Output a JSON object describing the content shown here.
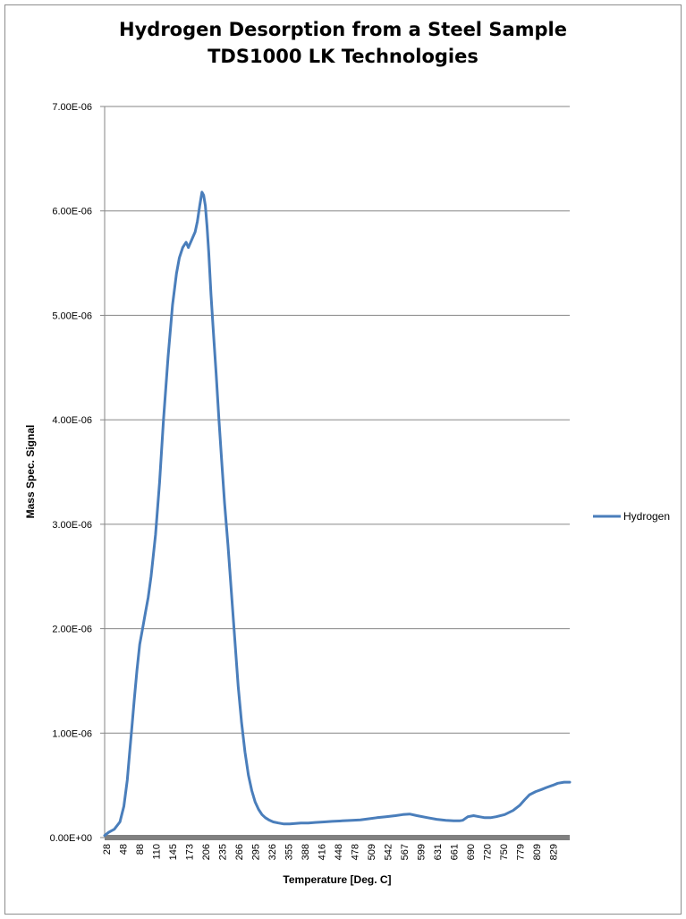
{
  "chart_data": {
    "type": "line",
    "title": "Hydrogen Desorption from a Steel Sample",
    "subtitle": "TDS1000 LK Technologies",
    "xlabel": "Temperature [Deg. C]",
    "ylabel": "Mass Spec. Signal",
    "ylim": [
      0,
      7e-06
    ],
    "xlim": [
      28,
      850
    ],
    "y_ticks": [
      "0.00E+00",
      "1.00E-06",
      "2.00E-06",
      "3.00E-06",
      "4.00E-06",
      "5.00E-06",
      "6.00E-06",
      "7.00E-06"
    ],
    "x_ticks": [
      "28",
      "48",
      "88",
      "110",
      "145",
      "173",
      "206",
      "235",
      "266",
      "295",
      "326",
      "355",
      "388",
      "416",
      "448",
      "478",
      "509",
      "542",
      "567",
      "599",
      "631",
      "661",
      "690",
      "720",
      "750",
      "779",
      "809",
      "829"
    ],
    "grid": true,
    "legend_position": "right",
    "series": [
      {
        "name": "Hydrogen",
        "color": "#4a7ebb",
        "x": [
          28,
          35,
          45,
          55,
          62,
          68,
          72,
          76,
          80,
          85,
          90,
          95,
          100,
          105,
          110,
          118,
          125,
          132,
          140,
          148,
          155,
          160,
          166,
          172,
          176,
          180,
          184,
          188,
          192,
          196,
          200,
          203,
          206,
          209,
          212,
          216,
          220,
          225,
          230,
          235,
          240,
          246,
          252,
          258,
          264,
          270,
          276,
          282,
          288,
          294,
          300,
          306,
          312,
          318,
          326,
          335,
          345,
          355,
          365,
          375,
          388,
          400,
          416,
          430,
          448,
          465,
          480,
          495,
          509,
          525,
          542,
          555,
          567,
          580,
          599,
          615,
          631,
          645,
          655,
          661,
          670,
          680,
          690,
          700,
          710,
          720,
          735,
          750,
          762,
          770,
          779,
          790,
          800,
          809,
          820,
          829,
          840,
          850
        ],
        "y": [
          2e-08,
          5e-08,
          8e-08,
          1.5e-07,
          3e-07,
          5.5e-07,
          8e-07,
          1.05e-06,
          1.3e-06,
          1.6e-06,
          1.85e-06,
          2e-06,
          2.15e-06,
          2.3e-06,
          2.5e-06,
          2.9e-06,
          3.4e-06,
          4e-06,
          4.6e-06,
          5.1e-06,
          5.4e-06,
          5.55e-06,
          5.65e-06,
          5.7e-06,
          5.65e-06,
          5.7e-06,
          5.75e-06,
          5.8e-06,
          5.9e-06,
          6.05e-06,
          6.18e-06,
          6.15e-06,
          6.05e-06,
          5.85e-06,
          5.6e-06,
          5.2e-06,
          4.85e-06,
          4.45e-06,
          4e-06,
          3.6e-06,
          3.2e-06,
          2.8e-06,
          2.35e-06,
          1.9e-06,
          1.45e-06,
          1.1e-06,
          8.2e-07,
          6e-07,
          4.5e-07,
          3.4e-07,
          2.7e-07,
          2.2e-07,
          1.9e-07,
          1.7e-07,
          1.5e-07,
          1.4e-07,
          1.3e-07,
          1.3e-07,
          1.35e-07,
          1.4e-07,
          1.4e-07,
          1.45e-07,
          1.5e-07,
          1.55e-07,
          1.6e-07,
          1.65e-07,
          1.7e-07,
          1.8e-07,
          1.9e-07,
          2e-07,
          2.1e-07,
          2.2e-07,
          2.25e-07,
          2.1e-07,
          1.9e-07,
          1.75e-07,
          1.65e-07,
          1.6e-07,
          1.6e-07,
          1.65e-07,
          2e-07,
          2.1e-07,
          2e-07,
          1.9e-07,
          1.9e-07,
          2e-07,
          2.2e-07,
          2.6e-07,
          3.1e-07,
          3.6e-07,
          4.1e-07,
          4.4e-07,
          4.6e-07,
          4.8e-07,
          5e-07,
          5.2e-07,
          5.3e-07,
          5.3e-07
        ]
      }
    ]
  }
}
